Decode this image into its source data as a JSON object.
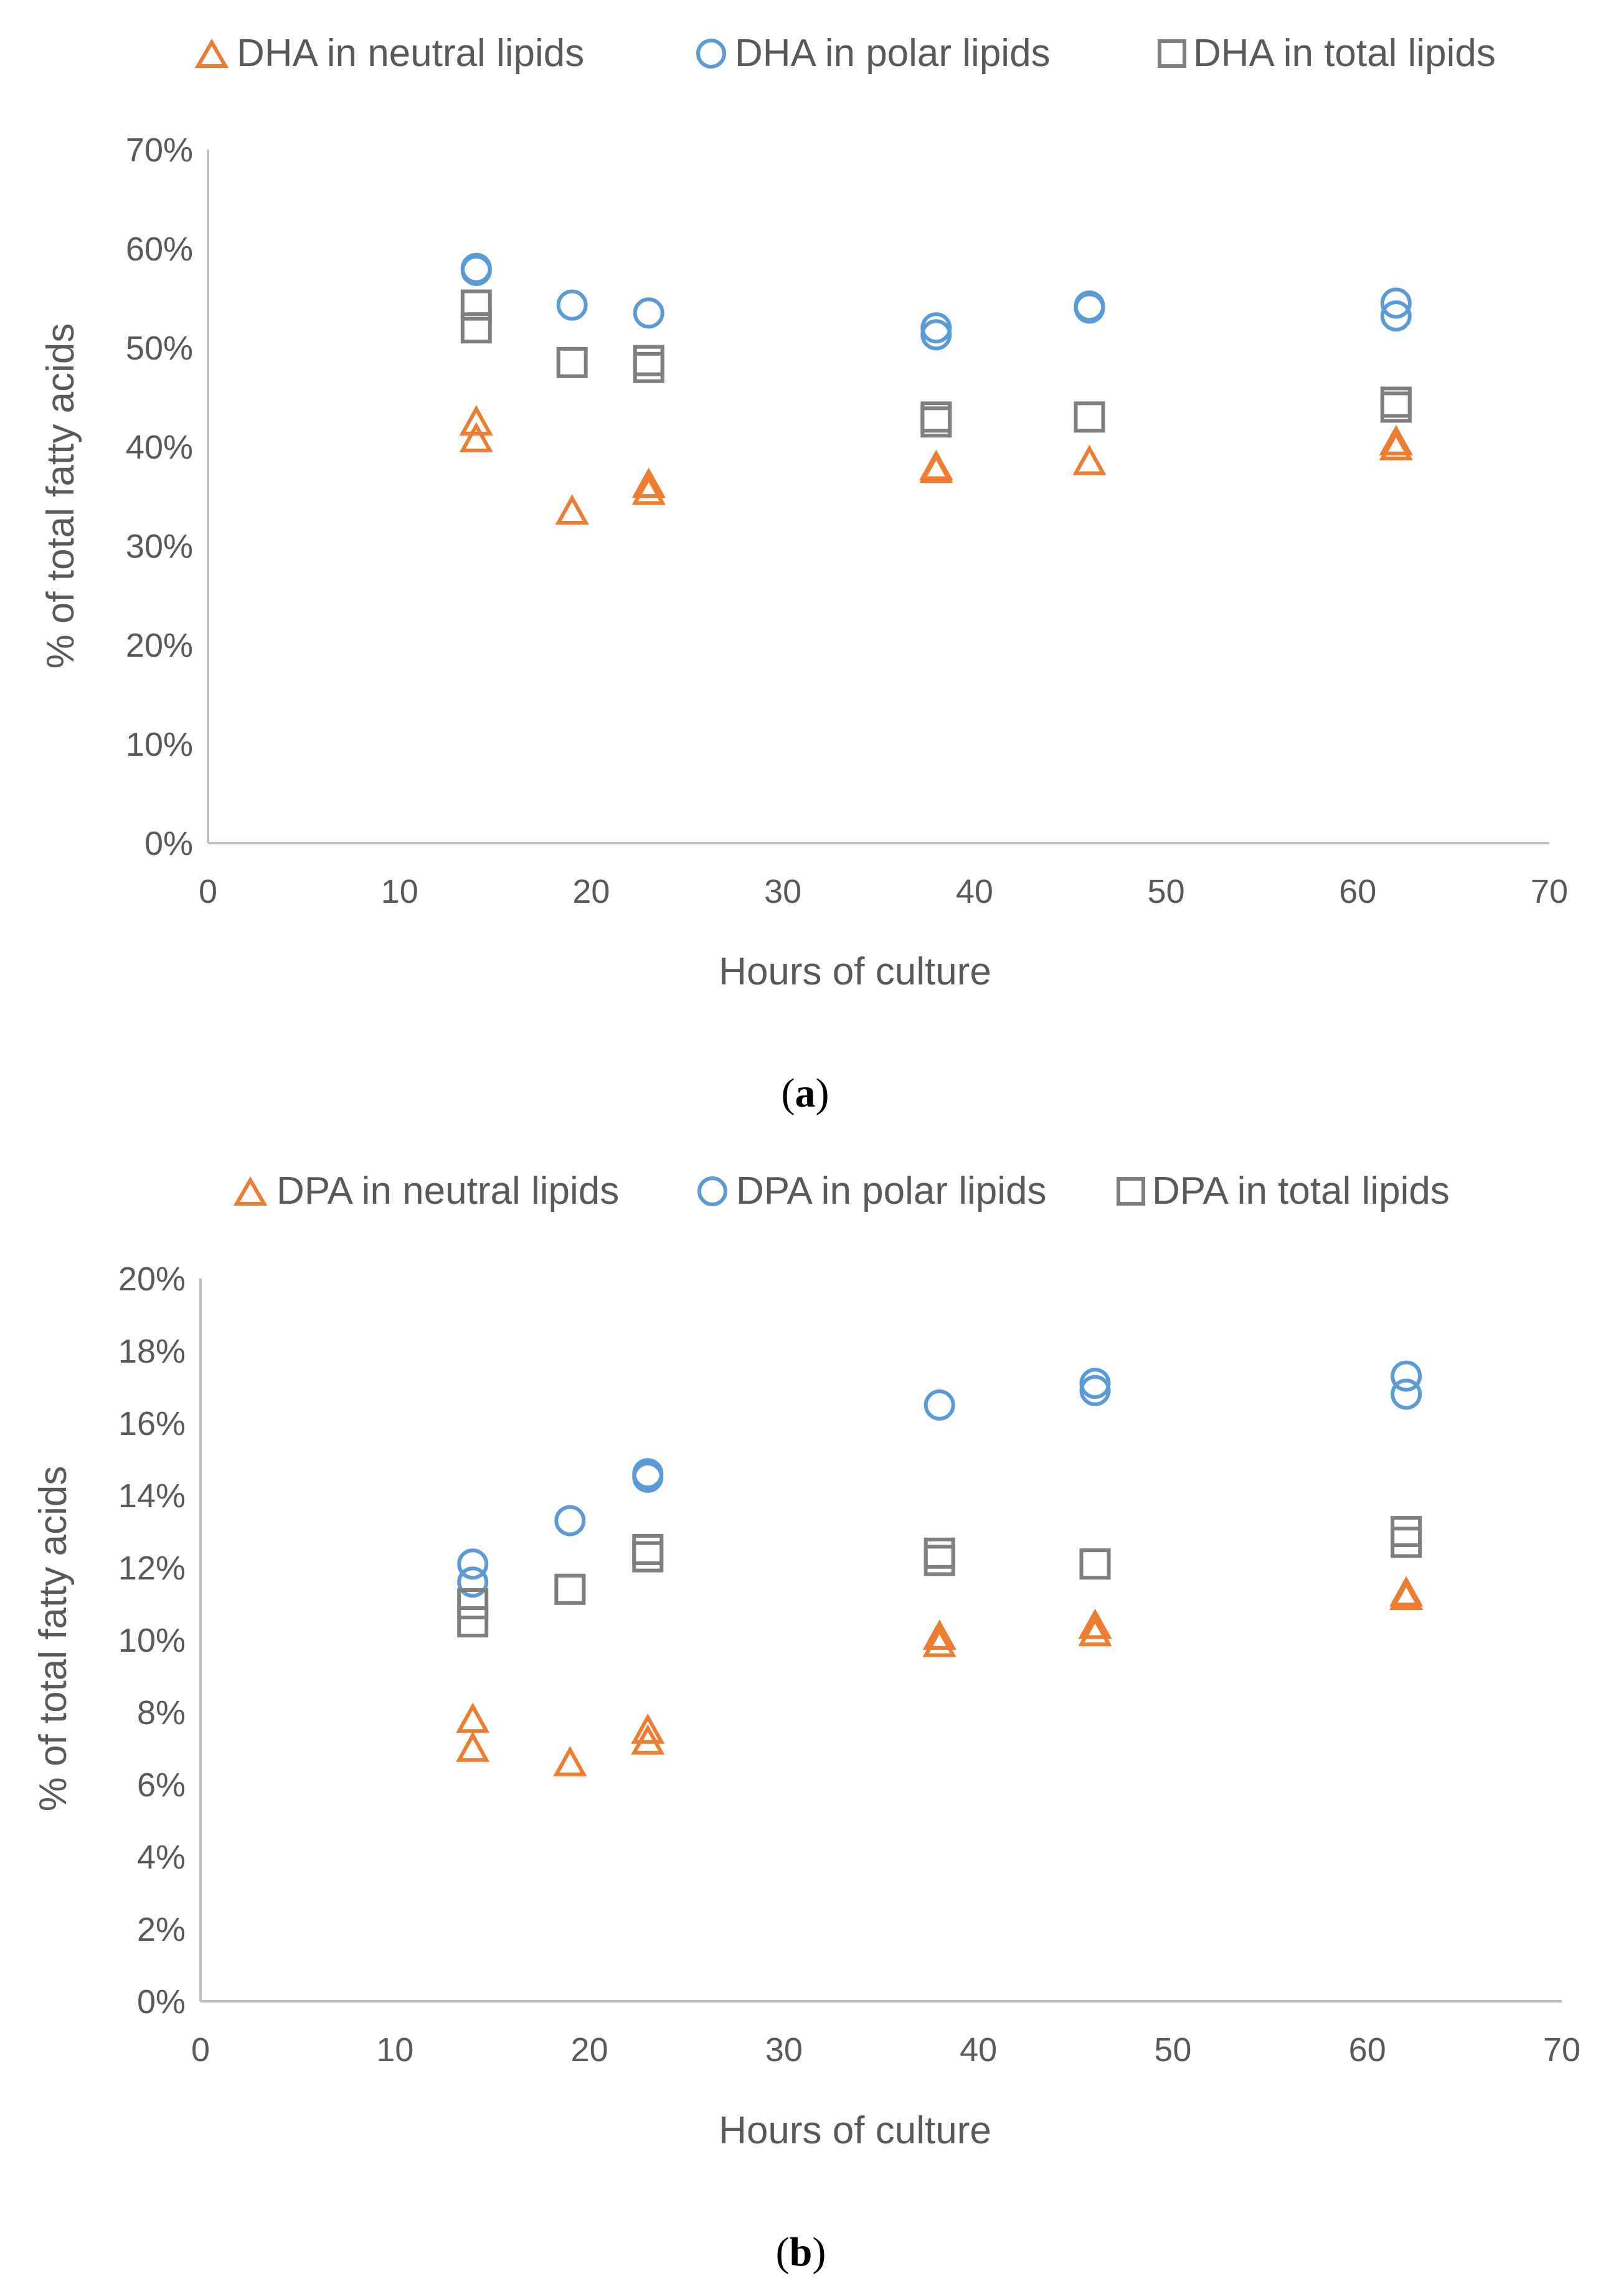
{
  "colors": {
    "neutral": "#ED7D31",
    "polar": "#5B9BD5",
    "total": "#7F7F7F",
    "axis": "#BFBFBF",
    "text": "#595959"
  },
  "chart_data": [
    {
      "type": "scatter",
      "panel": "a",
      "caption_letter": "a",
      "xlabel": "Hours of culture",
      "ylabel": "% of total fatty acids",
      "xlim": [
        0,
        70
      ],
      "ylim": [
        0,
        0.7
      ],
      "x_ticks": [
        0,
        10,
        20,
        30,
        40,
        50,
        60,
        70
      ],
      "x_tick_labels": [
        "0",
        "10",
        "20",
        "30",
        "40",
        "50",
        "60",
        "70"
      ],
      "y_ticks": [
        0,
        0.1,
        0.2,
        0.3,
        0.4,
        0.5,
        0.6,
        0.7
      ],
      "y_tick_labels": [
        "0%",
        "10%",
        "20%",
        "30%",
        "40%",
        "50%",
        "60%",
        "70%"
      ],
      "grid": false,
      "legend_position": "top",
      "series": [
        {
          "name": "DHA in neutral lipids",
          "marker": "triangle",
          "color_key": "neutral",
          "points": [
            [
              14,
              0.425
            ],
            [
              14,
              0.408
            ],
            [
              19,
              0.335
            ],
            [
              23,
              0.355
            ],
            [
              23,
              0.362
            ],
            [
              38,
              0.377
            ],
            [
              38,
              0.38
            ],
            [
              46,
              0.385
            ],
            [
              62,
              0.4
            ],
            [
              62,
              0.405
            ]
          ]
        },
        {
          "name": "DHA in polar lipids",
          "marker": "circle",
          "color_key": "polar",
          "points": [
            [
              14,
              0.58
            ],
            [
              14,
              0.578
            ],
            [
              19,
              0.543
            ],
            [
              23,
              0.535
            ],
            [
              38,
              0.513
            ],
            [
              38,
              0.52
            ],
            [
              46,
              0.54
            ],
            [
              46,
              0.542
            ],
            [
              62,
              0.545
            ],
            [
              62,
              0.532
            ]
          ]
        },
        {
          "name": "DHA in total lipids",
          "marker": "square",
          "color_key": "total",
          "points": [
            [
              14,
              0.543
            ],
            [
              14,
              0.52
            ],
            [
              19,
              0.485
            ],
            [
              23,
              0.48
            ],
            [
              23,
              0.487
            ],
            [
              38,
              0.425
            ],
            [
              38,
              0.43
            ],
            [
              46,
              0.43
            ],
            [
              62,
              0.44
            ],
            [
              62,
              0.445
            ]
          ]
        }
      ]
    },
    {
      "type": "scatter",
      "panel": "b",
      "caption_letter": "b",
      "xlabel": "Hours of culture",
      "ylabel": "% of total fatty acids",
      "xlim": [
        0,
        70
      ],
      "ylim": [
        0,
        0.2
      ],
      "x_ticks": [
        0,
        10,
        20,
        30,
        40,
        50,
        60,
        70
      ],
      "x_tick_labels": [
        "0",
        "10",
        "20",
        "30",
        "40",
        "50",
        "60",
        "70"
      ],
      "y_ticks": [
        0,
        0.02,
        0.04,
        0.06,
        0.08,
        0.1,
        0.12,
        0.14,
        0.16,
        0.18,
        0.2
      ],
      "y_tick_labels": [
        "0%",
        "2%",
        "4%",
        "6%",
        "8%",
        "10%",
        "12%",
        "14%",
        "16%",
        "18%",
        "20%"
      ],
      "grid": false,
      "legend_position": "top",
      "series": [
        {
          "name": "DPA in neutral lipids",
          "marker": "triangle",
          "color_key": "neutral",
          "points": [
            [
              14,
              0.078
            ],
            [
              14,
              0.07
            ],
            [
              19,
              0.066
            ],
            [
              23,
              0.072
            ],
            [
              23,
              0.075
            ],
            [
              38,
              0.099
            ],
            [
              38,
              0.101
            ],
            [
              46,
              0.102
            ],
            [
              46,
              0.104
            ],
            [
              62,
              0.112
            ],
            [
              62,
              0.113
            ]
          ]
        },
        {
          "name": "DPA in polar lipids",
          "marker": "circle",
          "color_key": "polar",
          "points": [
            [
              14,
              0.121
            ],
            [
              14,
              0.116
            ],
            [
              19,
              0.133
            ],
            [
              23,
              0.145
            ],
            [
              23,
              0.146
            ],
            [
              38,
              0.165
            ],
            [
              46,
              0.169
            ],
            [
              46,
              0.171
            ],
            [
              62,
              0.168
            ],
            [
              62,
              0.173
            ]
          ]
        },
        {
          "name": "DPA in total lipids",
          "marker": "square",
          "color_key": "total",
          "points": [
            [
              14,
              0.11
            ],
            [
              14,
              0.105
            ],
            [
              19,
              0.114
            ],
            [
              23,
              0.123
            ],
            [
              23,
              0.125
            ],
            [
              38,
              0.122
            ],
            [
              38,
              0.124
            ],
            [
              46,
              0.121
            ],
            [
              62,
              0.127
            ],
            [
              62,
              0.13
            ]
          ]
        }
      ]
    }
  ]
}
